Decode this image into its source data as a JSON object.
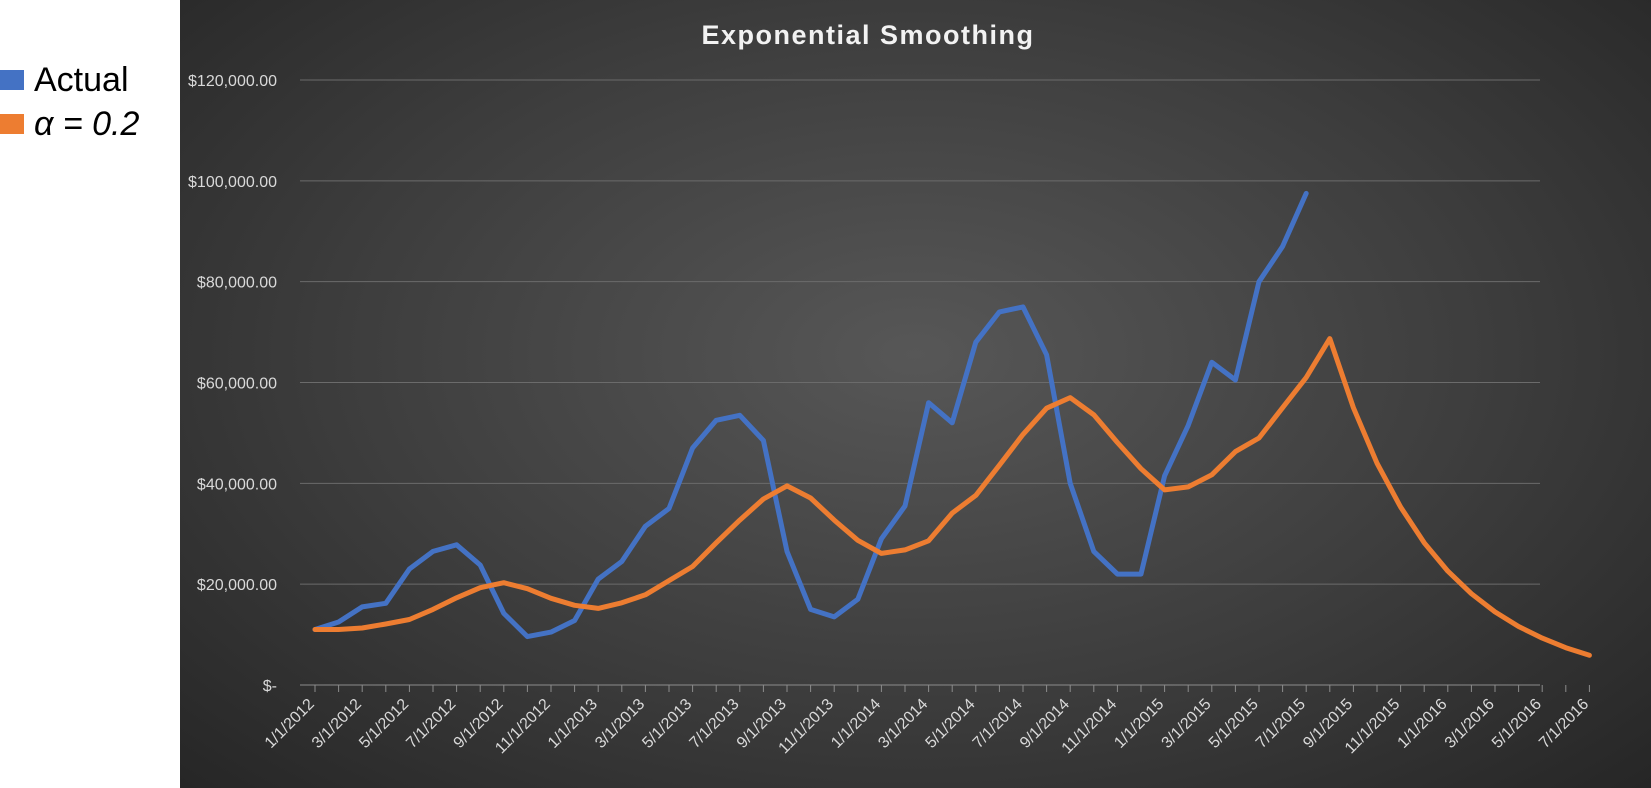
{
  "legend": [
    {
      "label": "Actual",
      "color": "#4472C4",
      "italic": false
    },
    {
      "label": "α = 0.2",
      "color": "#ED7D31",
      "italic": true
    }
  ],
  "chart_data": {
    "type": "line",
    "title": "Exponential Smoothing",
    "xlabel": "",
    "ylabel": "",
    "ylim": [
      0,
      120000
    ],
    "y_ticks": [
      0,
      20000,
      40000,
      60000,
      80000,
      100000,
      120000
    ],
    "y_tick_labels": [
      "$-",
      "$20,000.00",
      "$40,000.00",
      "$60,000.00",
      "$80,000.00",
      "$100,000.00",
      "$120,000.00"
    ],
    "x_tick_labels": [
      "1/1/2012",
      "3/1/2012",
      "5/1/2012",
      "7/1/2012",
      "9/1/2012",
      "11/1/2012",
      "1/1/2013",
      "3/1/2013",
      "5/1/2013",
      "7/1/2013",
      "9/1/2013",
      "11/1/2013",
      "1/1/2014",
      "3/1/2014",
      "5/1/2014",
      "7/1/2014",
      "9/1/2014",
      "11/1/2014",
      "1/1/2015",
      "3/1/2015",
      "5/1/2015",
      "7/1/2015",
      "9/1/2015",
      "11/1/2015",
      "1/1/2016",
      "3/1/2016",
      "5/1/2016",
      "7/1/2016"
    ],
    "grid": true,
    "legend_position": "left",
    "series": [
      {
        "name": "Actual",
        "color": "#4472C4",
        "start": "1/1/2012",
        "values": [
          11000,
          12500,
          15500,
          16200,
          23000,
          26500,
          27800,
          23800,
          14200,
          9600,
          10500,
          12800,
          21000,
          24500,
          31500,
          35000,
          47000,
          52500,
          53500,
          48500,
          26500,
          15000,
          13500,
          17000,
          29000,
          35500,
          56000,
          52000,
          68000,
          74000,
          75000,
          65500,
          40000,
          26500,
          22000,
          22000,
          41500,
          51500,
          64000,
          60500,
          80000,
          87000,
          97500
        ]
      },
      {
        "name": "α = 0.2",
        "color": "#ED7D31",
        "start": "1/1/2012",
        "values": [
          11000,
          11000,
          11300,
          12100,
          13000,
          15000,
          17300,
          19300,
          20300,
          19100,
          17200,
          15800,
          15200,
          16300,
          17900,
          20700,
          23500,
          28200,
          32700,
          36900,
          39500,
          37100,
          32700,
          28700,
          26100,
          26800,
          28600,
          34100,
          37600,
          43600,
          49700,
          54900,
          57000,
          53600,
          48100,
          42900,
          38700,
          39300,
          41700,
          46300,
          49000,
          55000,
          61000,
          68700,
          55000,
          44000,
          35300,
          28200,
          22600,
          18100,
          14500,
          11600,
          9300,
          7400,
          5900
        ]
      }
    ]
  }
}
